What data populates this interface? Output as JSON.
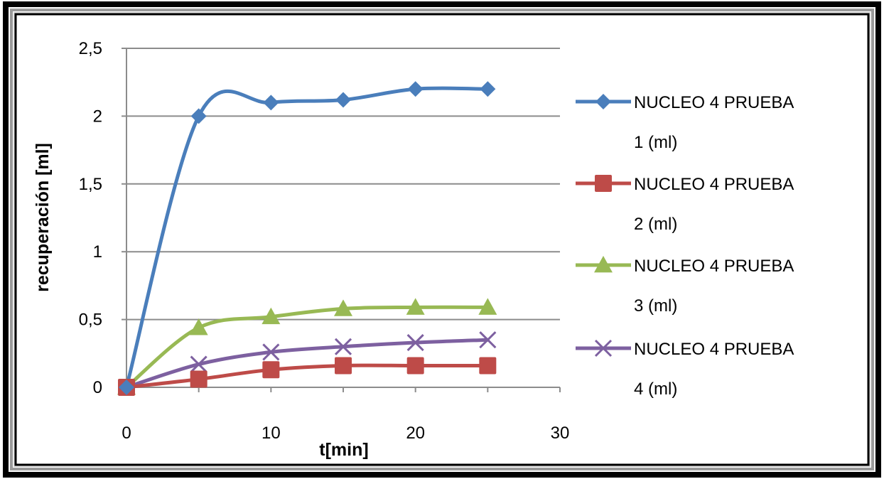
{
  "chart_data": {
    "type": "line",
    "xlabel": "t[min]",
    "ylabel": "recuperación [ml]",
    "xlim": [
      0,
      30
    ],
    "ylim": [
      0,
      2.5
    ],
    "x_ticks": [
      "0",
      "10",
      "20",
      "30"
    ],
    "y_ticks": [
      "0",
      "0,5",
      "1",
      "1,5",
      "2",
      "2,5"
    ],
    "grid": "horizontal",
    "legend_position": "right",
    "smooth": true,
    "x": [
      0,
      5,
      10,
      15,
      20,
      25
    ],
    "series": [
      {
        "name_line1": "NUCLEO 4 PRUEBA",
        "name_line2": "1 (ml)",
        "marker": "diamond",
        "color": "#4a7ebb",
        "values": [
          0,
          2.0,
          2.1,
          2.12,
          2.2,
          2.2
        ]
      },
      {
        "name_line1": "NUCLEO 4 PRUEBA",
        "name_line2": "2 (ml)",
        "marker": "square",
        "color": "#be4b48",
        "values": [
          0,
          0.06,
          0.13,
          0.16,
          0.16,
          0.16
        ]
      },
      {
        "name_line1": "NUCLEO 4 PRUEBA",
        "name_line2": "3 (ml)",
        "marker": "triangle",
        "color": "#98b954",
        "values": [
          0,
          0.44,
          0.52,
          0.58,
          0.59,
          0.59
        ]
      },
      {
        "name_line1": "NUCLEO 4 PRUEBA",
        "name_line2": "4 (ml)",
        "marker": "x",
        "color": "#7d60a0",
        "values": [
          0,
          0.17,
          0.26,
          0.3,
          0.33,
          0.35
        ]
      }
    ]
  }
}
